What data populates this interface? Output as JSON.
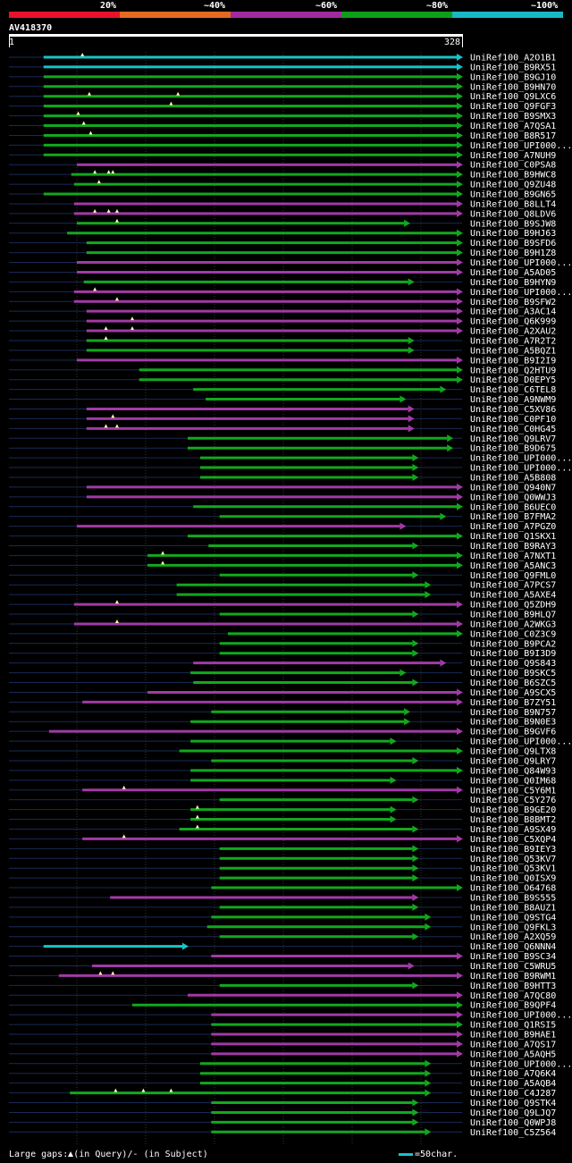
{
  "legend": {
    "percent_labels": [
      "20%",
      "~40%",
      "~60%",
      "~80%",
      "~100%"
    ],
    "colors": [
      "#e8132b",
      "#e46a22",
      "#a02a9e",
      "#0e9f1a",
      "#19b8c4"
    ]
  },
  "query": {
    "id": "AV418370",
    "start": "1",
    "end": "328",
    "length": 328
  },
  "hits": [
    {
      "label": "UniRef100_A2O1B1",
      "color": "teal",
      "start": 26,
      "end": 328,
      "arrow": true,
      "gap_marks": [
        54
      ]
    },
    {
      "label": "UniRef100_B9RX51",
      "color": "teal",
      "start": 26,
      "end": 328,
      "arrow": true
    },
    {
      "label": "UniRef100_B9GJ10",
      "color": "green",
      "start": 26,
      "end": 328,
      "arrow": true
    },
    {
      "label": "UniRef100_B9HN70",
      "color": "green",
      "start": 26,
      "end": 328,
      "arrow": true
    },
    {
      "label": "UniRef100_Q9LXC6",
      "color": "green",
      "start": 26,
      "end": 328,
      "arrow": true,
      "gap_marks": [
        59,
        123
      ]
    },
    {
      "label": "UniRef100_Q9FGF3",
      "color": "green",
      "start": 26,
      "end": 328,
      "arrow": true,
      "gap_marks": [
        118
      ]
    },
    {
      "label": "UniRef100_B9SMX3",
      "color": "green",
      "start": 26,
      "end": 328,
      "arrow": true,
      "gap_marks": [
        51
      ]
    },
    {
      "label": "UniRef100_A7QSA1",
      "color": "green",
      "start": 26,
      "end": 328,
      "arrow": true,
      "gap_marks": [
        55
      ]
    },
    {
      "label": "UniRef100_B8R517",
      "color": "green",
      "start": 26,
      "end": 328,
      "arrow": true,
      "gap_marks": [
        60
      ]
    },
    {
      "label": "UniRef100_UPI000...",
      "color": "green",
      "start": 26,
      "end": 328,
      "arrow": true
    },
    {
      "label": "UniRef100_A7NUH9",
      "color": "green",
      "start": 26,
      "end": 328,
      "arrow": true
    },
    {
      "label": "UniRef100_C0PSA8",
      "color": "purple",
      "start": 50,
      "end": 328,
      "arrow": true
    },
    {
      "label": "UniRef100_B9HWC8",
      "color": "green",
      "start": 46,
      "end": 328,
      "arrow": true,
      "gap_marks": [
        63,
        73,
        76
      ]
    },
    {
      "label": "UniRef100_Q9ZU48",
      "color": "green",
      "start": 48,
      "end": 328,
      "arrow": true,
      "gap_marks": [
        66
      ]
    },
    {
      "label": "UniRef100_B9GN65",
      "color": "green",
      "start": 26,
      "end": 328,
      "arrow": true
    },
    {
      "label": "UniRef100_B8LLT4",
      "color": "purple",
      "start": 48,
      "end": 328,
      "arrow": true
    },
    {
      "label": "UniRef100_Q8LDV6",
      "color": "purple",
      "start": 48,
      "end": 328,
      "arrow": true,
      "gap_marks": [
        63,
        73,
        79
      ]
    },
    {
      "label": "UniRef100_B9SJW8",
      "color": "green",
      "start": 50,
      "end": 290,
      "arrow": true,
      "gap_marks": [
        79
      ]
    },
    {
      "label": "UniRef100_B9HJ63",
      "color": "green",
      "start": 43,
      "end": 328,
      "arrow": true
    },
    {
      "label": "UniRef100_B9SFD6",
      "color": "green",
      "start": 57,
      "end": 328,
      "arrow": true
    },
    {
      "label": "UniRef100_B9H1Z8",
      "color": "green",
      "start": 57,
      "end": 328,
      "arrow": true
    },
    {
      "label": "UniRef100_UPI000...",
      "color": "purple",
      "start": 50,
      "end": 328,
      "arrow": true
    },
    {
      "label": "UniRef100_A5AD05",
      "color": "purple",
      "start": 50,
      "end": 328,
      "arrow": true
    },
    {
      "label": "UniRef100_B9HYN9",
      "color": "green",
      "start": 55,
      "end": 293,
      "arrow": true
    },
    {
      "label": "UniRef100_UPI000...",
      "color": "purple",
      "start": 48,
      "end": 328,
      "arrow": true,
      "gap_marks": [
        63
      ]
    },
    {
      "label": "UniRef100_B9SFW2",
      "color": "purple",
      "start": 48,
      "end": 328,
      "arrow": true,
      "gap_marks": [
        79
      ]
    },
    {
      "label": "UniRef100_A3AC14",
      "color": "purple",
      "start": 57,
      "end": 328,
      "arrow": true
    },
    {
      "label": "UniRef100_Q6K999",
      "color": "purple",
      "start": 57,
      "end": 328,
      "arrow": true,
      "gap_marks": [
        90
      ]
    },
    {
      "label": "UniRef100_A2XAU2",
      "color": "purple",
      "start": 57,
      "end": 328,
      "arrow": true,
      "gap_marks": [
        71,
        90
      ]
    },
    {
      "label": "UniRef100_A7R2T2",
      "color": "green",
      "start": 57,
      "end": 293,
      "arrow": true,
      "gap_marks": [
        71
      ]
    },
    {
      "label": "UniRef100_A5BQZ1",
      "color": "green",
      "start": 57,
      "end": 293,
      "arrow": true
    },
    {
      "label": "UniRef100_B9I2I9",
      "color": "purple",
      "start": 50,
      "end": 328,
      "arrow": true
    },
    {
      "label": "UniRef100_Q2HTU9",
      "color": "green",
      "start": 95,
      "end": 328,
      "arrow": true
    },
    {
      "label": "UniRef100_D0EPY5",
      "color": "green",
      "start": 95,
      "end": 328,
      "arrow": true
    },
    {
      "label": "UniRef100_C6TEL8",
      "color": "green",
      "start": 134,
      "end": 316,
      "arrow": true
    },
    {
      "label": "UniRef100_A9NWM9",
      "color": "green",
      "start": 143,
      "end": 287,
      "arrow": true
    },
    {
      "label": "UniRef100_C5XV86",
      "color": "purple",
      "start": 57,
      "end": 293,
      "arrow": true
    },
    {
      "label": "UniRef100_C0PF10",
      "color": "purple",
      "start": 57,
      "end": 293,
      "arrow": true,
      "gap_marks": [
        76
      ]
    },
    {
      "label": "UniRef100_C0HG45",
      "color": "purple",
      "start": 57,
      "end": 293,
      "arrow": true,
      "gap_marks": [
        71,
        79
      ]
    },
    {
      "label": "UniRef100_Q9LRV7",
      "color": "green",
      "start": 130,
      "end": 321,
      "arrow": true
    },
    {
      "label": "UniRef100_B9D675",
      "color": "green",
      "start": 130,
      "end": 321,
      "arrow": true
    },
    {
      "label": "UniRef100_UPI000...",
      "color": "green",
      "start": 139,
      "end": 296,
      "arrow": true
    },
    {
      "label": "UniRef100_UPI000...",
      "color": "green",
      "start": 139,
      "end": 296,
      "arrow": true
    },
    {
      "label": "UniRef100_A5B808",
      "color": "green",
      "start": 139,
      "end": 296,
      "arrow": true
    },
    {
      "label": "UniRef100_Q940N7",
      "color": "purple",
      "start": 57,
      "end": 328,
      "arrow": true
    },
    {
      "label": "UniRef100_Q0WWJ3",
      "color": "purple",
      "start": 57,
      "end": 328,
      "arrow": true
    },
    {
      "label": "UniRef100_B6UEC0",
      "color": "green",
      "start": 134,
      "end": 328,
      "arrow": true
    },
    {
      "label": "UniRef100_B7FMA2",
      "color": "green",
      "start": 153,
      "end": 316,
      "arrow": true
    },
    {
      "label": "UniRef100_A7PGZ0",
      "color": "purple",
      "start": 50,
      "end": 287,
      "arrow": true
    },
    {
      "label": "UniRef100_Q1SKX1",
      "color": "green",
      "start": 130,
      "end": 328,
      "arrow": true
    },
    {
      "label": "UniRef100_B9RAY3",
      "color": "green",
      "start": 145,
      "end": 296,
      "arrow": true
    },
    {
      "label": "UniRef100_A7NXT1",
      "color": "green",
      "start": 101,
      "end": 328,
      "arrow": true,
      "gap_marks": [
        112
      ]
    },
    {
      "label": "UniRef100_A5ANC3",
      "color": "green",
      "start": 101,
      "end": 328,
      "arrow": true,
      "gap_marks": [
        112
      ]
    },
    {
      "label": "UniRef100_Q9FML0",
      "color": "green",
      "start": 153,
      "end": 296,
      "arrow": true
    },
    {
      "label": "UniRef100_A7PCS7",
      "color": "green",
      "start": 122,
      "end": 305,
      "arrow": true
    },
    {
      "label": "UniRef100_A5AXE4",
      "color": "green",
      "start": 122,
      "end": 305,
      "arrow": true
    },
    {
      "label": "UniRef100_Q5ZDH9",
      "color": "purple",
      "start": 48,
      "end": 328,
      "arrow": true,
      "gap_marks": [
        79
      ]
    },
    {
      "label": "UniRef100_B9HLQ7",
      "color": "green",
      "start": 153,
      "end": 296,
      "arrow": true
    },
    {
      "label": "UniRef100_A2WKG3",
      "color": "purple",
      "start": 48,
      "end": 328,
      "arrow": true,
      "gap_marks": [
        79
      ]
    },
    {
      "label": "UniRef100_C0Z3C9",
      "color": "green",
      "start": 159,
      "end": 328,
      "arrow": true
    },
    {
      "label": "UniRef100_B9PCA2",
      "color": "green",
      "start": 153,
      "end": 296,
      "arrow": true
    },
    {
      "label": "UniRef100_B9I3D9",
      "color": "green",
      "start": 153,
      "end": 296,
      "arrow": true
    },
    {
      "label": "UniRef100_Q9S843",
      "color": "purple",
      "start": 134,
      "end": 316,
      "arrow": true
    },
    {
      "label": "UniRef100_B9SKC5",
      "color": "green",
      "start": 132,
      "end": 287,
      "arrow": true
    },
    {
      "label": "UniRef100_B6SZC5",
      "color": "green",
      "start": 134,
      "end": 296,
      "arrow": true
    },
    {
      "label": "UniRef100_A9SCX5",
      "color": "purple",
      "start": 101,
      "end": 328,
      "arrow": true
    },
    {
      "label": "UniRef100_B7ZY51",
      "color": "purple",
      "start": 54,
      "end": 328,
      "arrow": true
    },
    {
      "label": "UniRef100_B9N757",
      "color": "green",
      "start": 147,
      "end": 290,
      "arrow": true
    },
    {
      "label": "UniRef100_B9N0E3",
      "color": "green",
      "start": 132,
      "end": 290,
      "arrow": true
    },
    {
      "label": "UniRef100_B9GVF6",
      "color": "purple",
      "start": 30,
      "end": 328,
      "arrow": true
    },
    {
      "label": "UniRef100_UPI000...",
      "color": "green",
      "start": 132,
      "end": 280,
      "arrow": true
    },
    {
      "label": "UniRef100_Q9LTX8",
      "color": "green",
      "start": 124,
      "end": 328,
      "arrow": true
    },
    {
      "label": "UniRef100_Q9LRY7",
      "color": "green",
      "start": 147,
      "end": 296,
      "arrow": true
    },
    {
      "label": "UniRef100_Q84W93",
      "color": "green",
      "start": 132,
      "end": 328,
      "arrow": true
    },
    {
      "label": "UniRef100_Q0IM68",
      "color": "green",
      "start": 132,
      "end": 280,
      "arrow": true
    },
    {
      "label": "UniRef100_C5Y6M1",
      "color": "purple",
      "start": 54,
      "end": 328,
      "arrow": true,
      "gap_marks": [
        84
      ]
    },
    {
      "label": "UniRef100_C5Y276",
      "color": "green",
      "start": 153,
      "end": 296,
      "arrow": true
    },
    {
      "label": "UniRef100_B9GE20",
      "color": "green",
      "start": 132,
      "end": 280,
      "arrow": true,
      "gap_marks": [
        137
      ]
    },
    {
      "label": "UniRef100_B8BMT2",
      "color": "green",
      "start": 132,
      "end": 280,
      "arrow": true,
      "gap_marks": [
        137
      ]
    },
    {
      "label": "UniRef100_A9SX49",
      "color": "green",
      "start": 124,
      "end": 296,
      "arrow": true,
      "gap_marks": [
        137
      ]
    },
    {
      "label": "UniRef100_C5XQP4",
      "color": "purple",
      "start": 54,
      "end": 328,
      "arrow": true,
      "gap_marks": [
        84
      ]
    },
    {
      "label": "UniRef100_B9IEY3",
      "color": "green",
      "start": 153,
      "end": 296,
      "arrow": true
    },
    {
      "label": "UniRef100_Q53KV7",
      "color": "green",
      "start": 153,
      "end": 296,
      "arrow": true
    },
    {
      "label": "UniRef100_Q53KV1",
      "color": "green",
      "start": 153,
      "end": 296,
      "arrow": true
    },
    {
      "label": "UniRef100_Q0ISX9",
      "color": "green",
      "start": 153,
      "end": 296,
      "arrow": true
    },
    {
      "label": "UniRef100_O64768",
      "color": "green",
      "start": 147,
      "end": 328,
      "arrow": true
    },
    {
      "label": "UniRef100_B9S555",
      "color": "purple",
      "start": 74,
      "end": 296,
      "arrow": true
    },
    {
      "label": "UniRef100_B8AUZ1",
      "color": "green",
      "start": 153,
      "end": 296,
      "arrow": true
    },
    {
      "label": "UniRef100_Q9STG4",
      "color": "green",
      "start": 147,
      "end": 305,
      "arrow": true
    },
    {
      "label": "UniRef100_Q9FKL3",
      "color": "green",
      "start": 144,
      "end": 305,
      "arrow": true
    },
    {
      "label": "UniRef100_A2XQ59",
      "color": "green",
      "start": 153,
      "end": 296,
      "arrow": true
    },
    {
      "label": "UniRef100_Q6NNN4",
      "color": "teal",
      "start": 26,
      "end": 130,
      "arrow": true
    },
    {
      "label": "UniRef100_B9SC34",
      "color": "purple",
      "start": 147,
      "end": 328,
      "arrow": true
    },
    {
      "label": "UniRef100_C5WRU5",
      "color": "purple",
      "start": 61,
      "end": 293,
      "arrow": true
    },
    {
      "label": "UniRef100_B9RWM1",
      "color": "purple",
      "start": 37,
      "end": 328,
      "arrow": true,
      "gap_marks": [
        67,
        76
      ]
    },
    {
      "label": "UniRef100_B9HTT3",
      "color": "green",
      "start": 153,
      "end": 296,
      "arrow": true
    },
    {
      "label": "UniRef100_A7QC80",
      "color": "purple",
      "start": 130,
      "end": 328,
      "arrow": true
    },
    {
      "label": "UniRef100_B9QPF4",
      "color": "green",
      "start": 90,
      "end": 328,
      "arrow": true
    },
    {
      "label": "UniRef100_UPI000...",
      "color": "purple",
      "start": 147,
      "end": 328,
      "arrow": true
    },
    {
      "label": "UniRef100_Q1RSI5",
      "color": "green",
      "start": 147,
      "end": 328,
      "arrow": true
    },
    {
      "label": "UniRef100_B9HAE1",
      "color": "purple",
      "start": 147,
      "end": 328,
      "arrow": true
    },
    {
      "label": "UniRef100_A7QS17",
      "color": "purple",
      "start": 147,
      "end": 328,
      "arrow": true
    },
    {
      "label": "UniRef100_A5AQH5",
      "color": "purple",
      "start": 147,
      "end": 328,
      "arrow": true
    },
    {
      "label": "UniRef100_UPI000...",
      "color": "green",
      "start": 139,
      "end": 305,
      "arrow": true
    },
    {
      "label": "UniRef100_A7Q6K4",
      "color": "green",
      "start": 139,
      "end": 305,
      "arrow": true
    },
    {
      "label": "UniRef100_A5AQB4",
      "color": "green",
      "start": 139,
      "end": 305,
      "arrow": true
    },
    {
      "label": "UniRef100_C4J287",
      "color": "green",
      "start": 45,
      "end": 305,
      "arrow": true,
      "gap_marks": [
        78,
        98,
        118
      ]
    },
    {
      "label": "UniRef100_Q9STK4",
      "color": "green",
      "start": 147,
      "end": 296,
      "arrow": true
    },
    {
      "label": "UniRef100_Q9LJQ7",
      "color": "green",
      "start": 147,
      "end": 296,
      "arrow": true
    },
    {
      "label": "UniRef100_Q0WPJ8",
      "color": "green",
      "start": 147,
      "end": 296,
      "arrow": true
    },
    {
      "label": "UniRef100_C5Z564",
      "color": "green",
      "start": 147,
      "end": 305,
      "arrow": true
    }
  ],
  "hit_colors": {
    "teal": "#19c3c8",
    "green": "#12a81e",
    "purple": "#a13aa6"
  },
  "footer": {
    "gaps_label": "Large gaps:",
    "in_query": "(in Query)/- (in Subject)",
    "scale_text": "=50char."
  }
}
